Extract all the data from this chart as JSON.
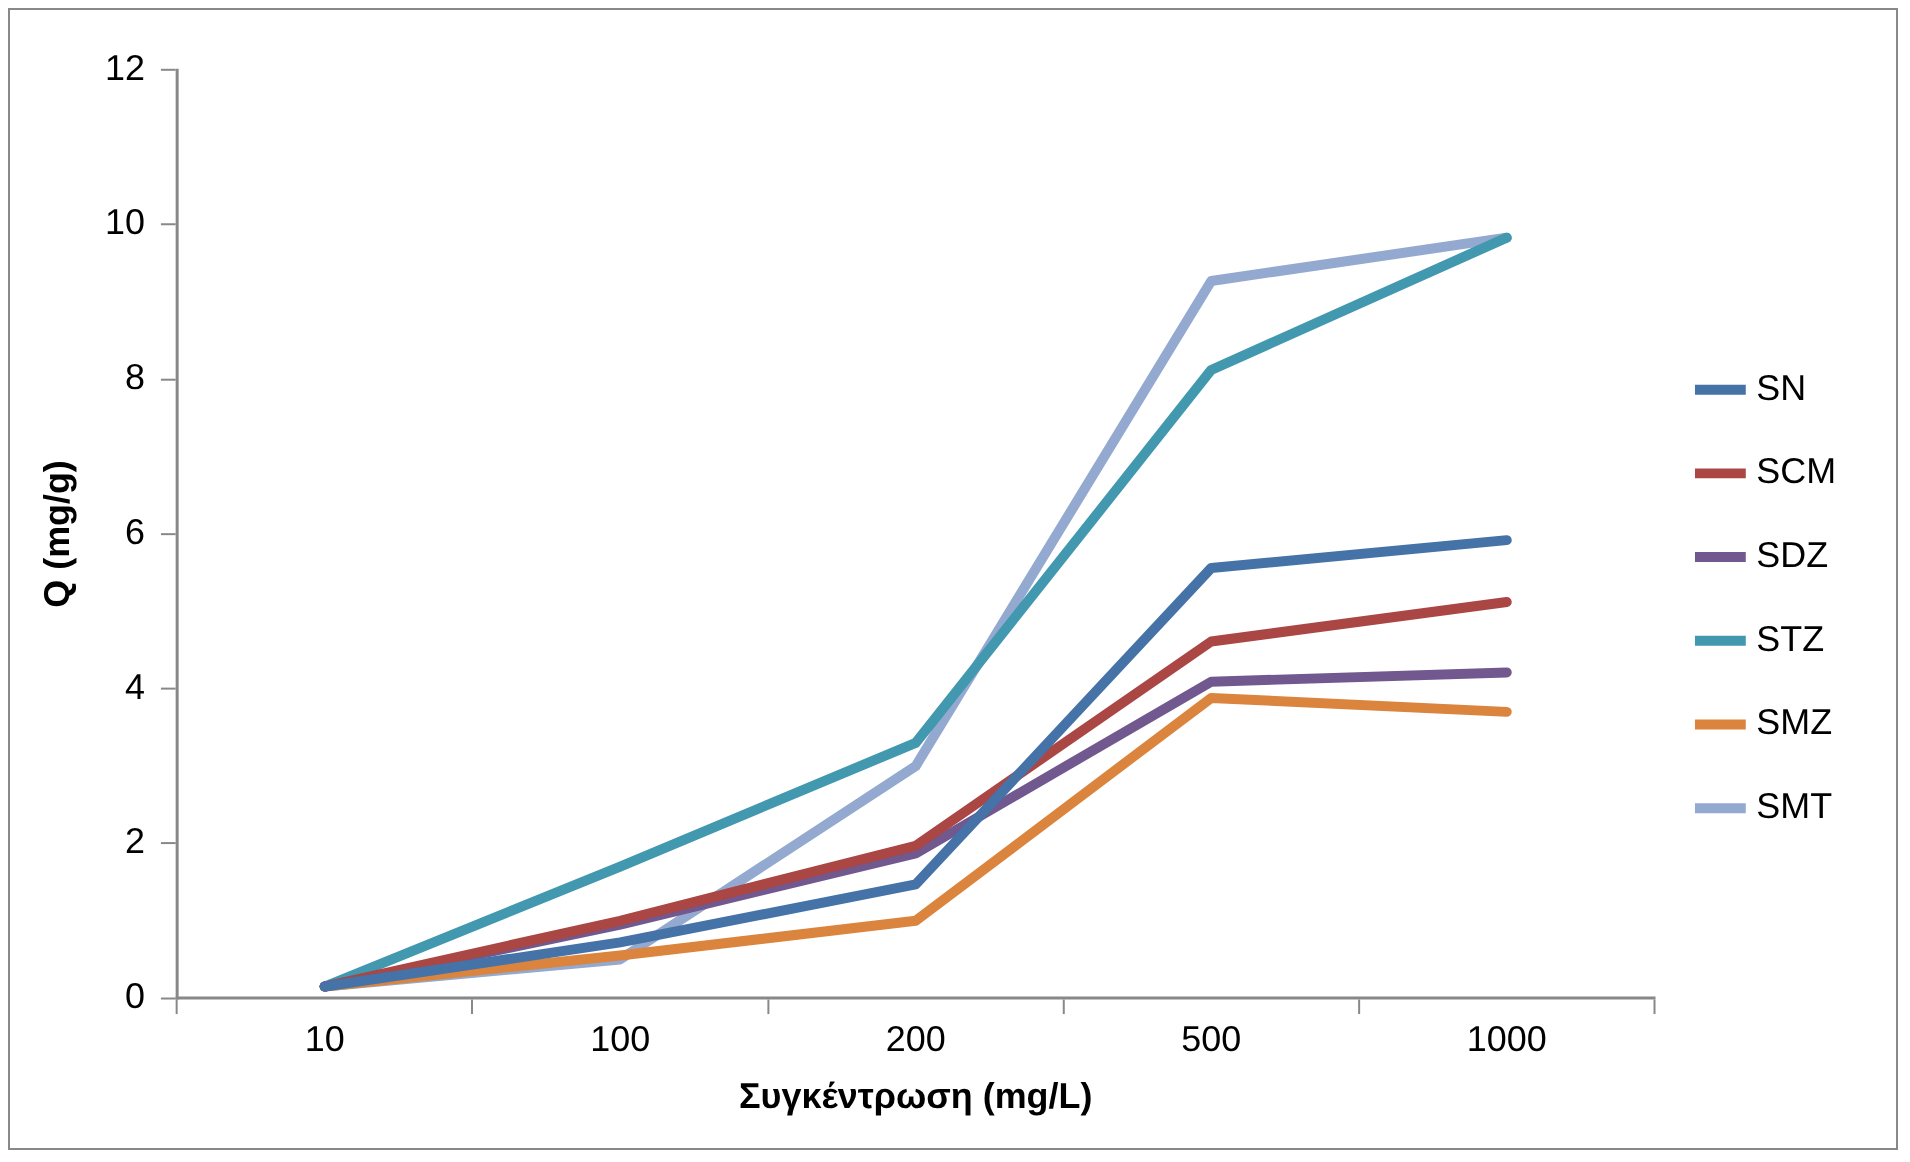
{
  "chart_data": {
    "type": "line",
    "xlabel": "Συγκέντρωση (mg/L)",
    "ylabel": "Q (mg/g)",
    "categories": [
      "10",
      "100",
      "200",
      "500",
      "1000"
    ],
    "ylim": [
      0,
      12
    ],
    "yticks": [
      0,
      2,
      4,
      6,
      8,
      10,
      12
    ],
    "grid": false,
    "legend": "right",
    "marker": "none",
    "line_style": "solid",
    "series": [
      {
        "name": "SN",
        "color": "#4572a7",
        "values": [
          0.15,
          0.72,
          1.47,
          5.56,
          5.92
        ]
      },
      {
        "name": "SCM",
        "color": "#aa4643",
        "values": [
          0.15,
          1.0,
          1.97,
          4.61,
          5.12
        ]
      },
      {
        "name": "SDZ",
        "color": "#71588f",
        "values": [
          0.15,
          0.95,
          1.87,
          4.09,
          4.21
        ]
      },
      {
        "name": "STZ",
        "color": "#4198af",
        "values": [
          0.15,
          1.7,
          3.3,
          8.12,
          9.83
        ]
      },
      {
        "name": "SMZ",
        "color": "#db843d",
        "values": [
          0.15,
          0.55,
          1.0,
          3.88,
          3.7
        ]
      },
      {
        "name": "SMT",
        "color": "#93a9cf",
        "values": [
          0.15,
          0.5,
          3.0,
          9.27,
          9.83
        ]
      }
    ]
  }
}
